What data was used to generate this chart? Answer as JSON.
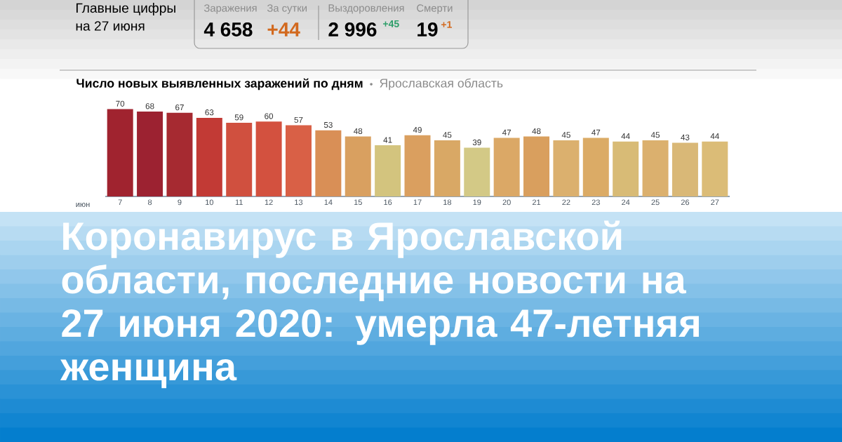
{
  "chart_data": {
    "type": "bar",
    "title": "Число новых выявленных заражений по дням",
    "subtitle": "Ярославская область",
    "xlabel": "июн",
    "categories": [
      "7",
      "8",
      "9",
      "10",
      "11",
      "12",
      "13",
      "14",
      "15",
      "16",
      "17",
      "18",
      "19",
      "20",
      "21",
      "22",
      "23",
      "24",
      "25",
      "26",
      "27"
    ],
    "values": [
      70,
      68,
      67,
      63,
      59,
      60,
      57,
      53,
      48,
      41,
      49,
      45,
      39,
      47,
      48,
      45,
      47,
      44,
      45,
      43,
      44
    ],
    "colors": [
      "#a0232f",
      "#9c2231",
      "#a62a31",
      "#c23a35",
      "#d0503f",
      "#d3513f",
      "#d96046",
      "#d98f56",
      "#d9a060",
      "#d3c47e",
      "#da9f5f",
      "#d9a865",
      "#d3c986",
      "#dba866",
      "#d99f5e",
      "#dbb06e",
      "#dbab66",
      "#d8bb76",
      "#dbb06e",
      "#d9b877",
      "#dbbc77"
    ],
    "data_labels": true,
    "annotations": [
      "Главные цифры",
      "на 27 июня",
      "Заражения",
      "4 658",
      "За сутки",
      "+44",
      "Выздоровления",
      "2 996",
      "+45",
      "Смерти",
      "19",
      "+1",
      "Коронавирус в Ярославской области, последние новости на 27 июня 2020: умерла 47-летняя женщина"
    ]
  }
}
